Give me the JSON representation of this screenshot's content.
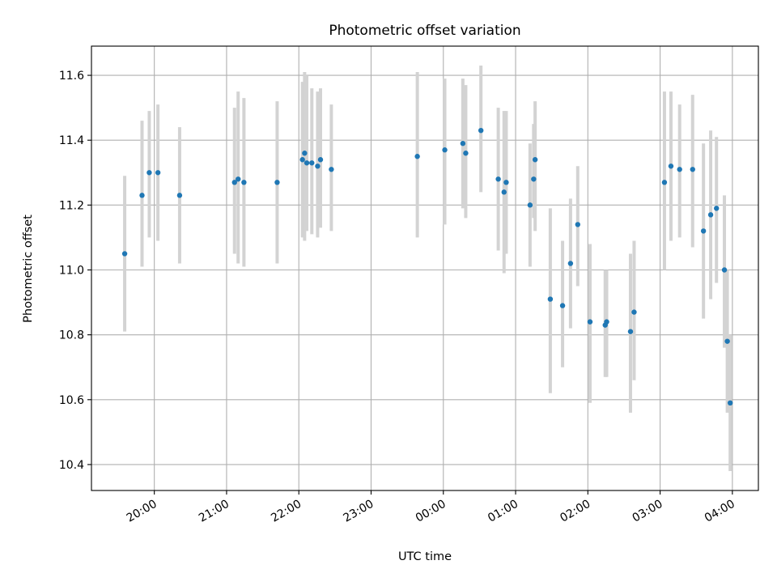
{
  "chart_data": {
    "type": "scatter",
    "title": "Photometric offset variation",
    "xlabel": "UTC time",
    "ylabel": "Photometric offset",
    "x_unit": "hours since 00:00 UTC (negative = previous day)",
    "xlim": [
      -4.87,
      4.36
    ],
    "ylim": [
      10.32,
      11.69
    ],
    "xticks": [
      -4,
      -3,
      -2,
      -1,
      0,
      1,
      2,
      3,
      4
    ],
    "xtick_labels": [
      "20:00",
      "21:00",
      "22:00",
      "23:00",
      "00:00",
      "01:00",
      "02:00",
      "03:00",
      "04:00"
    ],
    "yticks": [
      10.4,
      10.6,
      10.8,
      11.0,
      11.2,
      11.4,
      11.6
    ],
    "ytick_labels": [
      "10.4",
      "10.6",
      "10.8",
      "11.0",
      "11.2",
      "11.4",
      "11.6"
    ],
    "grid": true,
    "colors": {
      "point": "#1f77b4",
      "errorbar": "#d3d3d3",
      "grid": "#b0b0b0",
      "axes": "#000000"
    },
    "series": [
      {
        "points": [
          [
            -4.41,
            11.05,
            10.81,
            11.29
          ],
          [
            -4.17,
            11.23,
            11.01,
            11.46
          ],
          [
            -4.07,
            11.3,
            11.1,
            11.49
          ],
          [
            -3.95,
            11.3,
            11.09,
            11.51
          ],
          [
            -3.65,
            11.23,
            11.02,
            11.44
          ],
          [
            -2.89,
            11.27,
            11.05,
            11.5
          ],
          [
            -2.84,
            11.28,
            11.02,
            11.55
          ],
          [
            -2.76,
            11.27,
            11.01,
            11.53
          ],
          [
            -2.3,
            11.27,
            11.02,
            11.52
          ],
          [
            -1.95,
            11.34,
            11.1,
            11.58
          ],
          [
            -1.92,
            11.36,
            11.09,
            11.61
          ],
          [
            -1.89,
            11.33,
            11.12,
            11.6
          ],
          [
            -1.82,
            11.33,
            11.11,
            11.56
          ],
          [
            -1.74,
            11.32,
            11.1,
            11.55
          ],
          [
            -1.7,
            11.34,
            11.13,
            11.56
          ],
          [
            -1.55,
            11.31,
            11.12,
            11.51
          ],
          [
            -0.36,
            11.35,
            11.1,
            11.61
          ],
          [
            0.02,
            11.37,
            11.14,
            11.59
          ],
          [
            0.27,
            11.39,
            11.19,
            11.59
          ],
          [
            0.31,
            11.36,
            11.16,
            11.57
          ],
          [
            0.52,
            11.43,
            11.24,
            11.63
          ],
          [
            0.76,
            11.28,
            11.06,
            11.5
          ],
          [
            0.84,
            11.24,
            10.99,
            11.49
          ],
          [
            0.87,
            11.27,
            11.05,
            11.49
          ],
          [
            1.2,
            11.2,
            11.01,
            11.39
          ],
          [
            1.25,
            11.28,
            11.16,
            11.45
          ],
          [
            1.27,
            11.34,
            11.12,
            11.52
          ],
          [
            1.48,
            10.91,
            10.62,
            11.19
          ],
          [
            1.65,
            10.89,
            10.7,
            11.09
          ],
          [
            1.76,
            11.02,
            10.82,
            11.22
          ],
          [
            1.86,
            11.14,
            10.95,
            11.32
          ],
          [
            2.03,
            10.84,
            10.59,
            11.08
          ],
          [
            2.24,
            10.83,
            10.67,
            11.0
          ],
          [
            2.26,
            10.84,
            10.67,
            11.0
          ],
          [
            2.59,
            10.81,
            10.56,
            11.05
          ],
          [
            2.64,
            10.87,
            10.66,
            11.09
          ],
          [
            3.06,
            11.27,
            11.0,
            11.55
          ],
          [
            3.15,
            11.32,
            11.09,
            11.55
          ],
          [
            3.27,
            11.31,
            11.1,
            11.51
          ],
          [
            3.45,
            11.31,
            11.07,
            11.54
          ],
          [
            3.6,
            11.12,
            10.85,
            11.39
          ],
          [
            3.7,
            11.17,
            10.91,
            11.43
          ],
          [
            3.78,
            11.19,
            10.96,
            11.41
          ],
          [
            3.89,
            11.0,
            10.76,
            11.23
          ],
          [
            3.93,
            10.78,
            10.56,
            11.0
          ],
          [
            3.97,
            10.59,
            10.38,
            10.8
          ]
        ]
      }
    ]
  }
}
